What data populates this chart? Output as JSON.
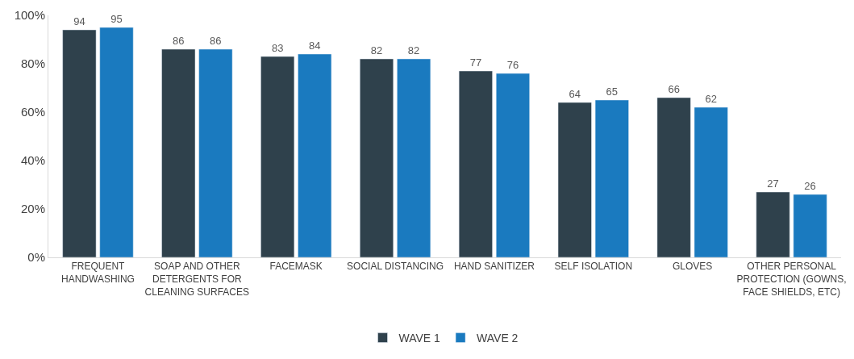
{
  "chart_data": {
    "type": "bar",
    "categories": [
      "FREQUENT HANDWASHING",
      "SOAP AND OTHER DETERGENTS FOR CLEANING SURFACES",
      "FACEMASK",
      "SOCIAL DISTANCING",
      "HAND SANITIZER",
      "SELF ISOLATION",
      "GLOVES",
      "OTHER PERSONAL PROTECTION (GOWNS, FACE SHIELDS, ETC)"
    ],
    "series": [
      {
        "name": "WAVE 1",
        "color": "#2f414c",
        "values": [
          94,
          86,
          83,
          82,
          77,
          64,
          66,
          27
        ]
      },
      {
        "name": "WAVE 2",
        "color": "#1a7abf",
        "values": [
          95,
          86,
          84,
          82,
          76,
          65,
          62,
          26
        ]
      }
    ],
    "ylim": [
      0,
      100
    ],
    "yticks": [
      {
        "value": 0,
        "label": "0%"
      },
      {
        "value": 20,
        "label": "20%"
      },
      {
        "value": 40,
        "label": "40%"
      },
      {
        "value": 60,
        "label": "60%"
      },
      {
        "value": 80,
        "label": "80%"
      },
      {
        "value": 100,
        "label": "100%"
      }
    ],
    "data_labels": true,
    "grid": false,
    "legend": "bottom"
  }
}
